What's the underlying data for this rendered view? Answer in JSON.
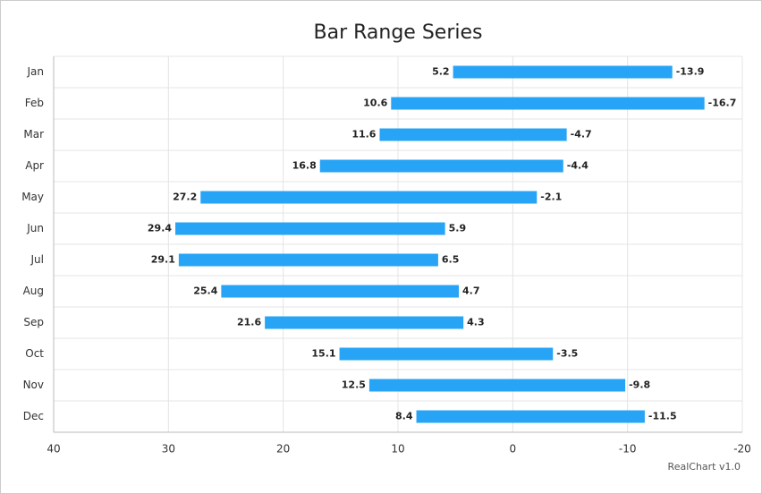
{
  "chart_data": {
    "type": "bar-range",
    "title": "Bar Range Series",
    "credit": "RealChart v1.0",
    "categories": [
      "Jan",
      "Feb",
      "Mar",
      "Apr",
      "May",
      "Jun",
      "Jul",
      "Aug",
      "Sep",
      "Oct",
      "Nov",
      "Dec"
    ],
    "start": [
      5.2,
      10.6,
      11.6,
      16.8,
      27.2,
      29.4,
      29.1,
      25.4,
      21.6,
      15.1,
      12.5,
      8.4
    ],
    "end": [
      -13.9,
      -16.7,
      -4.7,
      -4.4,
      -2.1,
      5.9,
      6.5,
      4.7,
      4.3,
      -3.5,
      -9.8,
      -11.5
    ],
    "color": "#27a4f5",
    "xlim": [
      40,
      -20
    ],
    "xticks": [
      40,
      30,
      20,
      10,
      0,
      -10,
      -20
    ],
    "grid": true
  }
}
